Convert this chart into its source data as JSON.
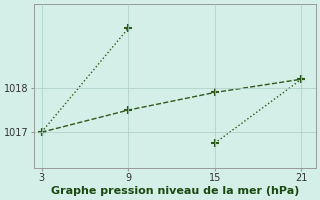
{
  "line1_x": [
    3,
    9
  ],
  "line1_y": [
    1017.0,
    1019.35
  ],
  "line2_x": [
    15,
    21
  ],
  "line2_y": [
    1016.75,
    1018.2
  ],
  "line3_x": [
    3,
    9,
    15,
    21
  ],
  "line3_y": [
    1017.0,
    1017.5,
    1017.9,
    1018.2
  ],
  "line_color": "#2d5a1b",
  "marker": "+",
  "marker_size": 6,
  "marker_linewidth": 1.5,
  "bg_color": "#d4eee8",
  "grid_color": "#aaccc6",
  "xlabel": "Graphe pression niveau de la mer (hPa)",
  "xlabel_color": "#1a4a10",
  "xlabel_fontsize": 8,
  "xticks": [
    3,
    9,
    15,
    21
  ],
  "ytick_labels": [
    1017,
    1018
  ],
  "ylim": [
    1016.2,
    1019.9
  ],
  "xlim": [
    2.5,
    22.0
  ],
  "tick_color": "#333333",
  "tick_fontsize": 7,
  "linewidth": 1.0,
  "linestyle1": ":",
  "linestyle2": "--"
}
